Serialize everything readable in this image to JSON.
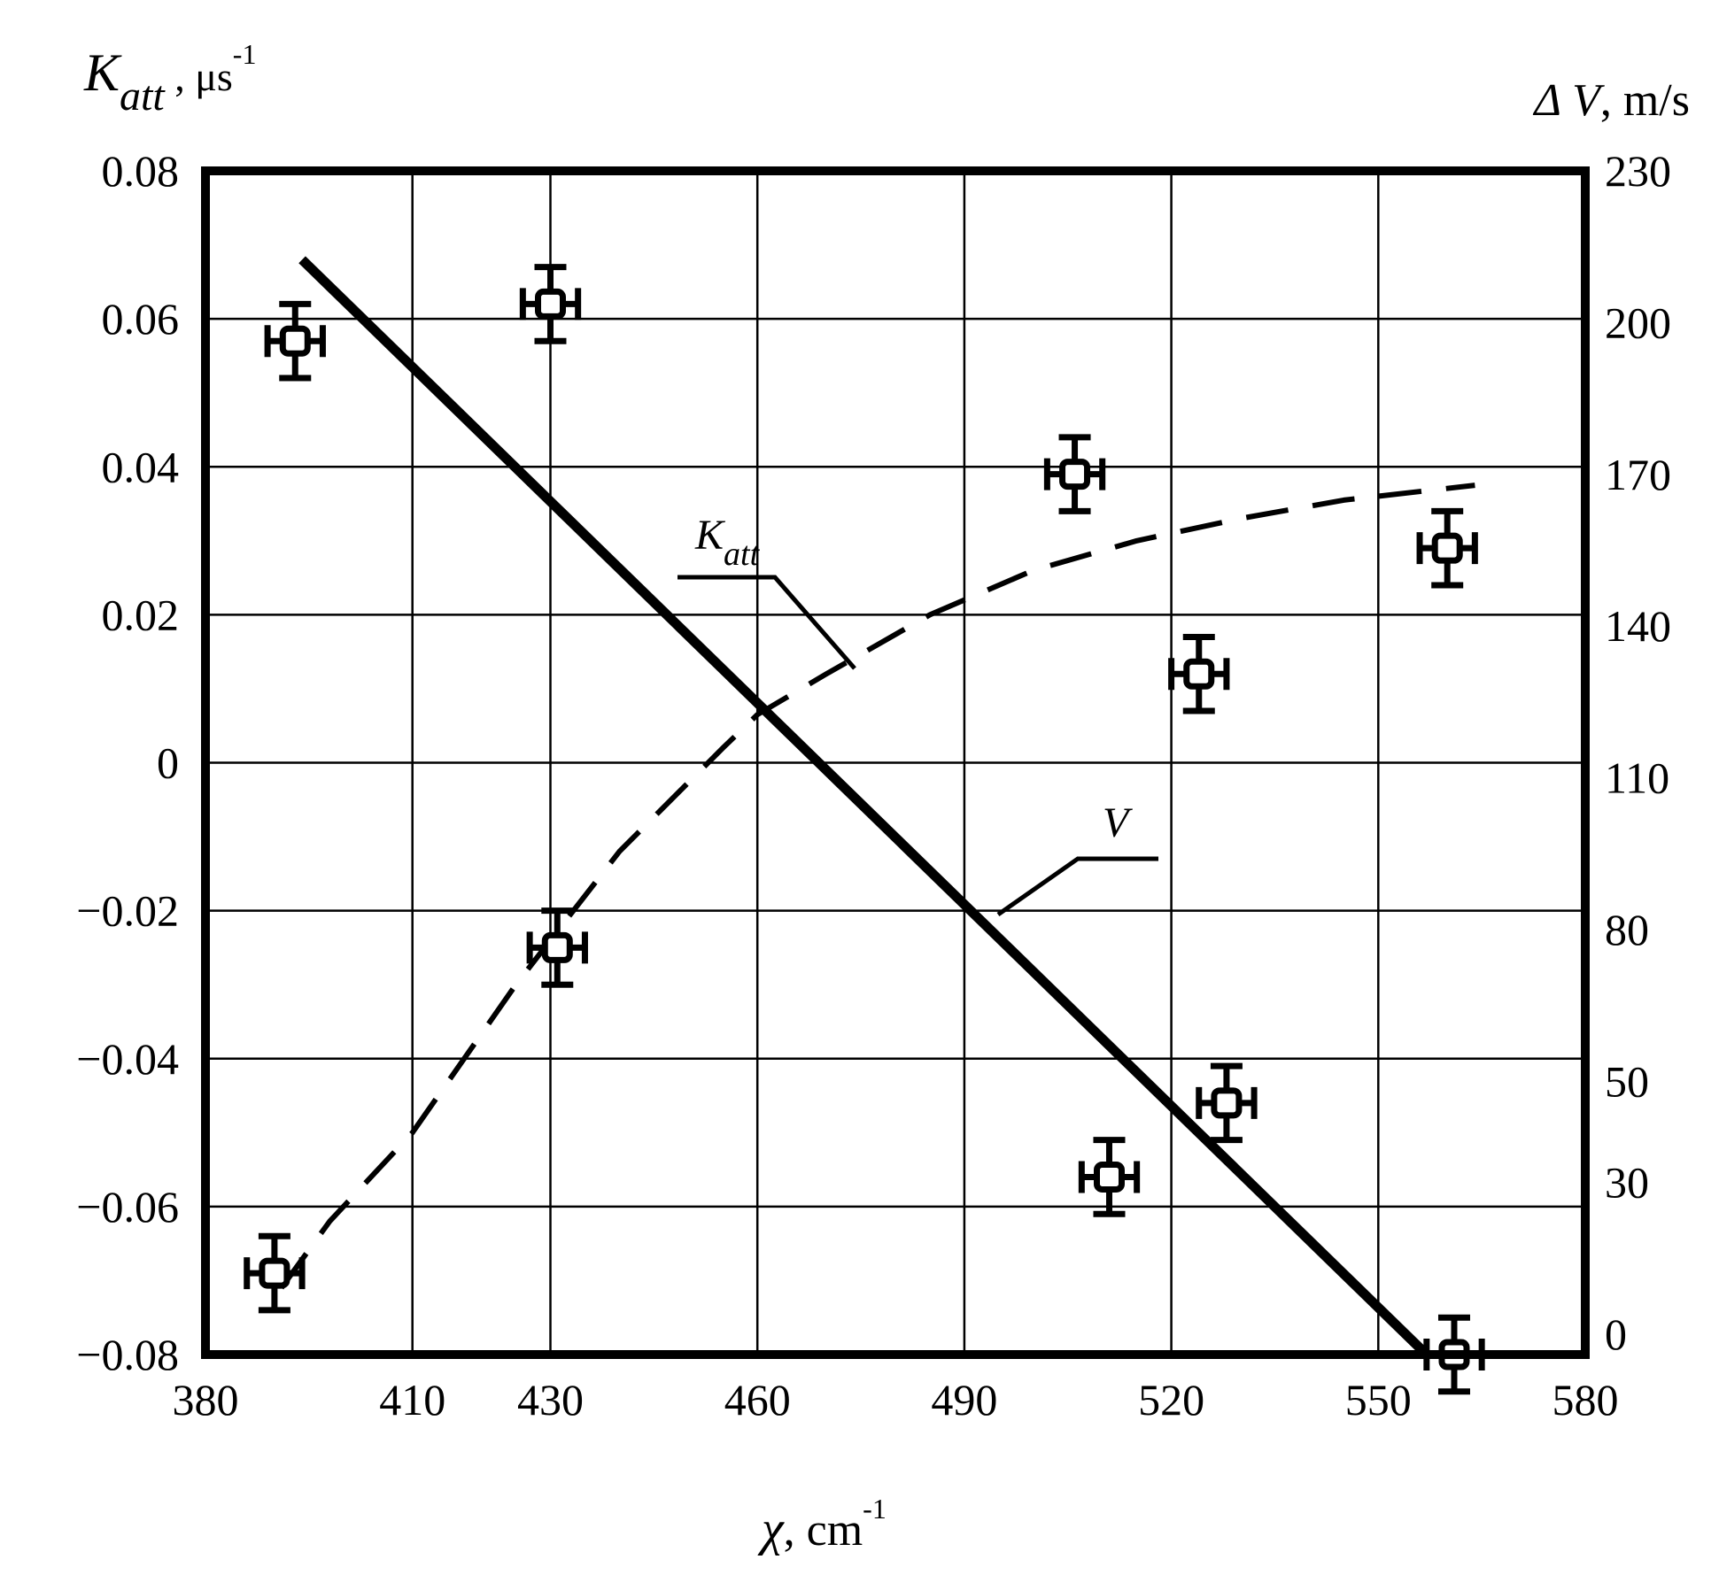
{
  "chart_data": {
    "type": "scatter",
    "x_axis": {
      "label_main": "χ",
      "label_unit": ", cm",
      "label_exp": "-1",
      "range": [
        380,
        580
      ],
      "ticks": [
        380,
        410,
        430,
        460,
        490,
        520,
        550,
        580
      ]
    },
    "y_left": {
      "label_main": "K",
      "label_sub": "att",
      "label_unit": " , μs",
      "label_exp": "-1",
      "range": [
        -0.08,
        0.08
      ],
      "ticks": [
        "0.08",
        "0.06",
        "0.04",
        "0.02",
        "0",
        "−0.02",
        "−0.04",
        "−0.06",
        "−0.08"
      ]
    },
    "y_right": {
      "label_main": "Δ V",
      "label_unit": ", m/s",
      "range": [
        -4,
        230
      ],
      "ticks": [
        "230",
        "200",
        "170",
        "140",
        "110",
        "80",
        "50",
        "30",
        "0"
      ]
    },
    "grid": true,
    "series": [
      {
        "label_main": "K",
        "label_sub": "att",
        "style": "dashed",
        "axis": "left",
        "x": [
          391,
          398,
          410,
          425,
          440,
          455,
          460,
          470,
          485,
          500,
          515,
          530,
          545,
          564
        ],
        "y": [
          -0.071,
          -0.062,
          -0.05,
          -0.03,
          -0.012,
          0.002,
          0.0065,
          0.012,
          0.02,
          0.026,
          0.03,
          0.033,
          0.0355,
          0.0375
        ]
      },
      {
        "label_main": "V",
        "style": "solid",
        "axis": "left",
        "x": [
          394,
          557
        ],
        "y": [
          0.068,
          -0.08
        ]
      }
    ],
    "points": {
      "x": [
        393,
        430,
        390,
        431,
        506,
        524,
        511,
        528,
        560,
        561
      ],
      "y": [
        0.057,
        0.062,
        -0.069,
        -0.025,
        0.039,
        0.012,
        -0.056,
        -0.046,
        0.029,
        -0.08
      ],
      "error_y": 0.005,
      "error_x": 4
    }
  }
}
